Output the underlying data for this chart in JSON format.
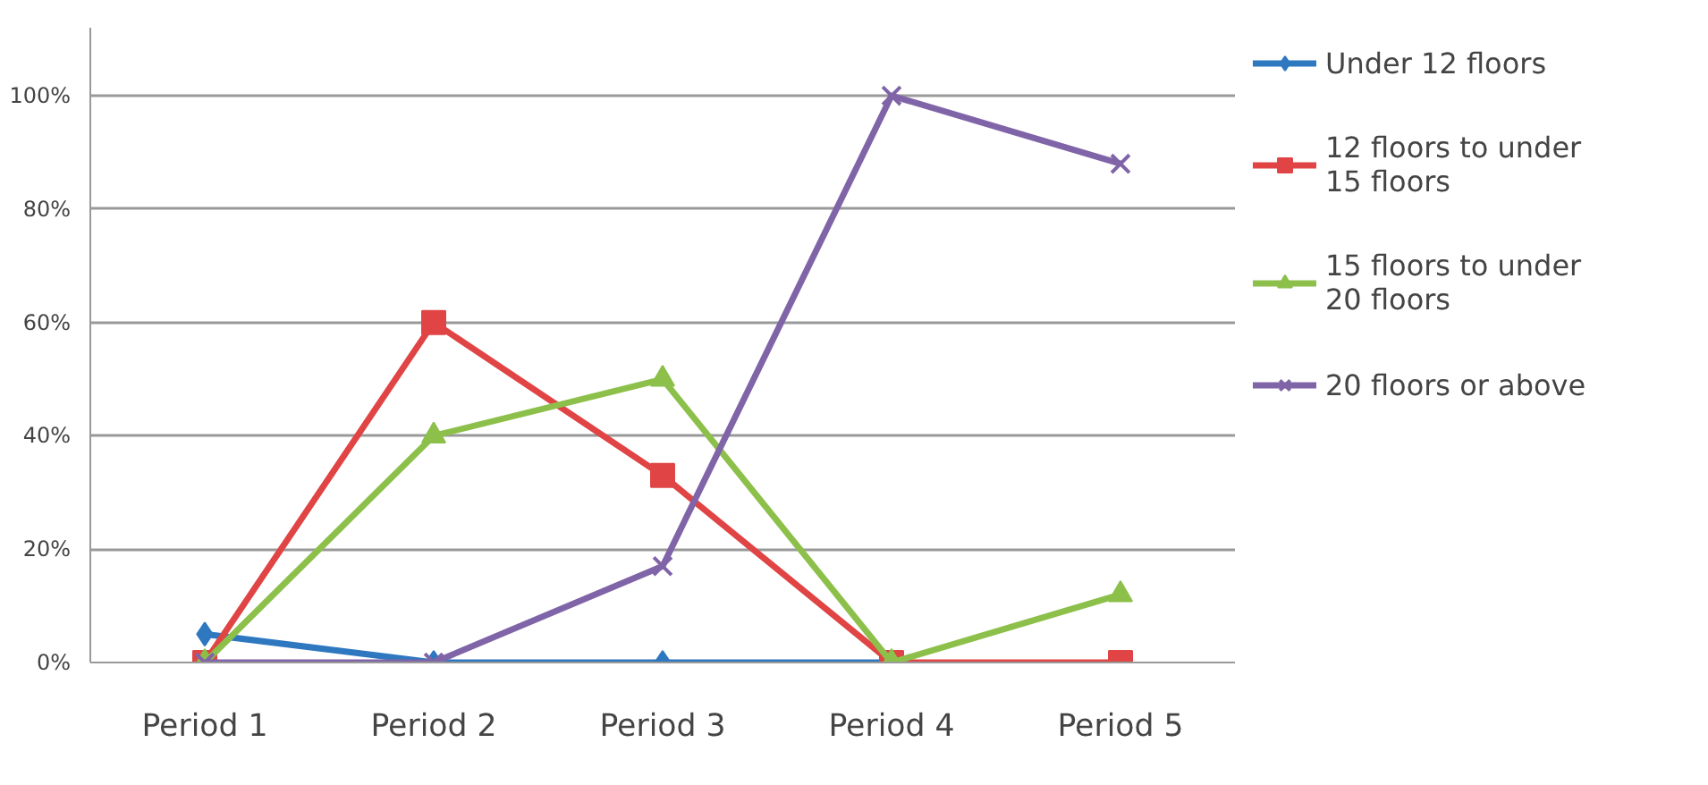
{
  "chart_data": {
    "type": "line",
    "categories": [
      "Period 1",
      "Period 2",
      "Period 3",
      "Period 4",
      "Period 5"
    ],
    "series": [
      {
        "name": "Under 12 floors",
        "color": "#2e78c0",
        "marker": "diamond",
        "values": [
          5,
          0,
          0,
          0,
          null
        ]
      },
      {
        "name": "12 floors to under 15 floors",
        "color": "#e04444",
        "marker": "square",
        "values": [
          0,
          60,
          33,
          0,
          0
        ]
      },
      {
        "name": "15 floors to under 20 floors",
        "color": "#8cc04a",
        "marker": "triangle",
        "values": [
          0,
          40,
          50,
          0,
          12
        ]
      },
      {
        "name": "20 floors or above",
        "color": "#8064a8",
        "marker": "cross",
        "values": [
          0,
          0,
          17,
          100,
          88
        ]
      }
    ],
    "ylim": [
      0,
      112
    ],
    "yticks": [
      {
        "value": 0,
        "label": "0%"
      },
      {
        "value": 20,
        "label": "20%"
      },
      {
        "value": 40,
        "label": "40%"
      },
      {
        "value": 60,
        "label": "60%"
      },
      {
        "value": 80,
        "label": "80%"
      },
      {
        "value": 100,
        "label": "100%"
      }
    ],
    "grid": "y",
    "legend": "right",
    "line_style": "solid"
  }
}
